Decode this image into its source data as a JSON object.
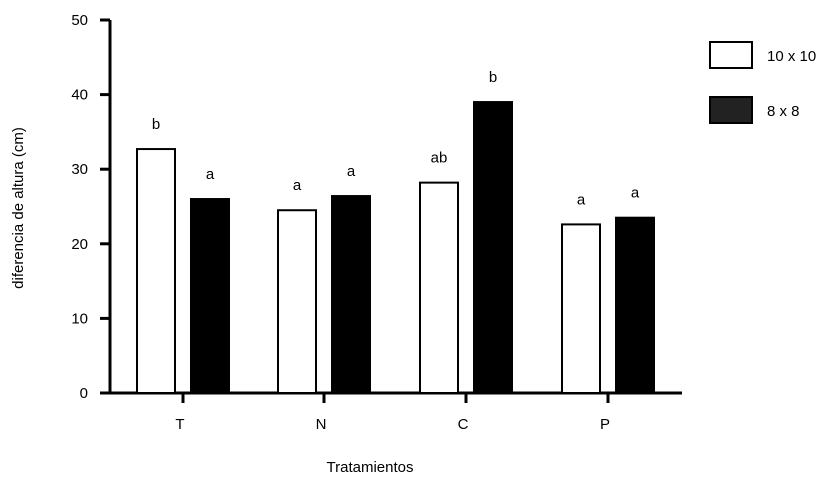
{
  "chart_data": {
    "type": "bar",
    "title": "",
    "xlabel": "Tratamientos",
    "ylabel": "diferencia de altura (cm)",
    "ylim": [
      0,
      50
    ],
    "yticks": [
      0,
      10,
      20,
      30,
      40,
      50
    ],
    "categories": [
      "T",
      "N",
      "C",
      "P"
    ],
    "series": [
      {
        "name": "10 x 10",
        "color": "#ffffff",
        "values": [
          32.7,
          24.5,
          28.2,
          22.6
        ],
        "labels": [
          "b",
          "a",
          "ab",
          "a"
        ]
      },
      {
        "name": "8 x 8",
        "color": "#000000",
        "values": [
          26.0,
          26.4,
          39.0,
          23.5
        ],
        "labels": [
          "a",
          "a",
          "b",
          "a"
        ]
      }
    ],
    "legend_position": "top-right",
    "grid": false
  }
}
